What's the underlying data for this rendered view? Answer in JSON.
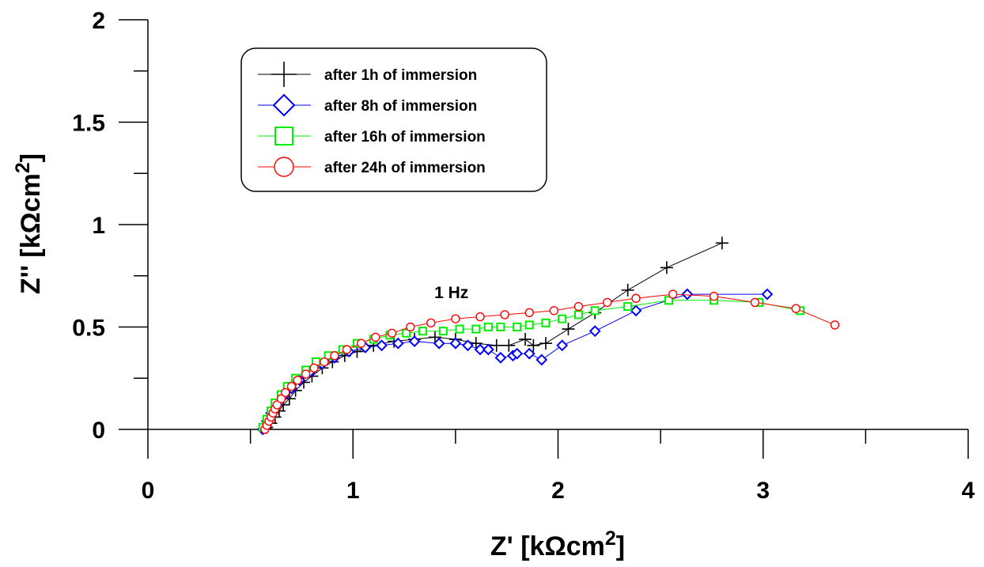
{
  "chart_data": {
    "type": "scatter",
    "title": "",
    "xlabel": "Z' [kΩcm",
    "xlabel_sup": "2",
    "xlabel_end": "]",
    "ylabel": "Z'' [kΩcm",
    "ylabel_sup": "2",
    "ylabel_end": "]",
    "xlim": [
      0,
      4
    ],
    "ylim": [
      0,
      2
    ],
    "xticks": [
      "0",
      "1",
      "2",
      "3",
      "4"
    ],
    "yticks": [
      "0",
      "0.5",
      "1",
      "1.5",
      "2"
    ],
    "grid": false,
    "legend_position": "top-left",
    "annotation": {
      "text": "1 Hz",
      "x": 1.48,
      "y": 0.64
    },
    "series": [
      {
        "name": "after 1h of immersion",
        "color": "#000000",
        "marker": "plus",
        "x": [
          0.58,
          0.6,
          0.62,
          0.64,
          0.66,
          0.69,
          0.72,
          0.76,
          0.8,
          0.85,
          0.9,
          0.96,
          1.02,
          1.1,
          1.2,
          1.3,
          1.4,
          1.5,
          1.6,
          1.7,
          1.76,
          1.84,
          1.88,
          1.94,
          2.05,
          2.18,
          2.34,
          2.53,
          2.8
        ],
        "y": [
          0.01,
          0.03,
          0.06,
          0.09,
          0.12,
          0.15,
          0.19,
          0.23,
          0.26,
          0.3,
          0.33,
          0.36,
          0.38,
          0.41,
          0.43,
          0.44,
          0.45,
          0.44,
          0.42,
          0.41,
          0.41,
          0.44,
          0.41,
          0.42,
          0.49,
          0.57,
          0.68,
          0.79,
          0.91
        ]
      },
      {
        "name": "after 8h of immersion",
        "color": "#0000ff",
        "marker": "diamond",
        "x": [
          0.56,
          0.58,
          0.6,
          0.63,
          0.66,
          0.7,
          0.74,
          0.79,
          0.85,
          0.91,
          0.98,
          1.06,
          1.14,
          1.22,
          1.3,
          1.42,
          1.5,
          1.56,
          1.62,
          1.66,
          1.72,
          1.78,
          1.8,
          1.86,
          1.92,
          2.02,
          2.18,
          2.38,
          2.63,
          3.02
        ],
        "y": [
          0.0,
          0.04,
          0.08,
          0.12,
          0.16,
          0.2,
          0.24,
          0.28,
          0.32,
          0.35,
          0.38,
          0.4,
          0.41,
          0.42,
          0.43,
          0.42,
          0.42,
          0.41,
          0.39,
          0.39,
          0.35,
          0.36,
          0.37,
          0.37,
          0.34,
          0.41,
          0.48,
          0.58,
          0.66,
          0.66
        ]
      },
      {
        "name": "after 16h of immersion",
        "color": "#00ee00",
        "marker": "square",
        "x": [
          0.56,
          0.58,
          0.6,
          0.62,
          0.65,
          0.68,
          0.72,
          0.77,
          0.82,
          0.88,
          0.95,
          1.02,
          1.1,
          1.18,
          1.26,
          1.34,
          1.44,
          1.52,
          1.6,
          1.66,
          1.72,
          1.8,
          1.86,
          1.94,
          2.02,
          2.1,
          2.18,
          2.34,
          2.54,
          2.76,
          2.98,
          3.18
        ],
        "y": [
          0.01,
          0.05,
          0.09,
          0.13,
          0.17,
          0.21,
          0.25,
          0.29,
          0.33,
          0.36,
          0.39,
          0.42,
          0.44,
          0.46,
          0.47,
          0.48,
          0.48,
          0.49,
          0.49,
          0.5,
          0.5,
          0.5,
          0.51,
          0.52,
          0.54,
          0.56,
          0.58,
          0.6,
          0.63,
          0.63,
          0.62,
          0.58
        ]
      },
      {
        "name": "after 24h of immersion",
        "color": "#ff0000",
        "marker": "circle",
        "x": [
          0.57,
          0.58,
          0.59,
          0.6,
          0.61,
          0.62,
          0.63,
          0.65,
          0.67,
          0.7,
          0.73,
          0.77,
          0.81,
          0.86,
          0.91,
          0.97,
          1.04,
          1.11,
          1.19,
          1.28,
          1.38,
          1.5,
          1.62,
          1.74,
          1.86,
          1.98,
          2.1,
          2.24,
          2.38,
          2.56,
          2.76,
          2.96,
          3.16,
          3.35
        ],
        "y": [
          0.0,
          0.02,
          0.04,
          0.06,
          0.08,
          0.1,
          0.12,
          0.15,
          0.18,
          0.21,
          0.24,
          0.27,
          0.3,
          0.33,
          0.36,
          0.39,
          0.42,
          0.45,
          0.47,
          0.5,
          0.52,
          0.54,
          0.55,
          0.56,
          0.57,
          0.58,
          0.6,
          0.62,
          0.64,
          0.66,
          0.65,
          0.62,
          0.59,
          0.51
        ]
      }
    ]
  }
}
